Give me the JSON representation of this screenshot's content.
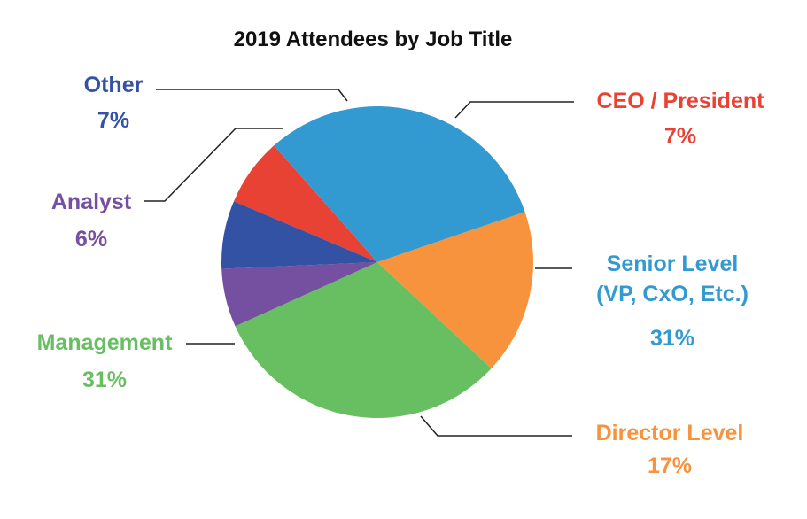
{
  "chart_data": {
    "type": "pie",
    "title": "2019 Attendees by Job Title",
    "slices": [
      {
        "label": "CEO / President",
        "label_lines": [
          "CEO / President"
        ],
        "value": 7,
        "value_label": "7%",
        "color": "#e84234"
      },
      {
        "label": "Senior Level (VP, CxO, Etc.)",
        "label_lines": [
          "Senior Level",
          "(VP, CxO, Etc.)"
        ],
        "value": 31,
        "value_label": "31%",
        "color": "#3399d1"
      },
      {
        "label": "Director Level",
        "label_lines": [
          "Director Level"
        ],
        "value": 17,
        "value_label": "17%",
        "color": "#f7923d"
      },
      {
        "label": "Management",
        "label_lines": [
          "Management"
        ],
        "value": 31,
        "value_label": "31%",
        "color": "#68bf61"
      },
      {
        "label": "Analyst",
        "label_lines": [
          "Analyst"
        ],
        "value": 6,
        "value_label": "6%",
        "color": "#7650a0"
      },
      {
        "label": "Other",
        "label_lines": [
          "Other"
        ],
        "value": 7,
        "value_label": "7%",
        "color": "#3452a4"
      }
    ],
    "legend": "none"
  }
}
